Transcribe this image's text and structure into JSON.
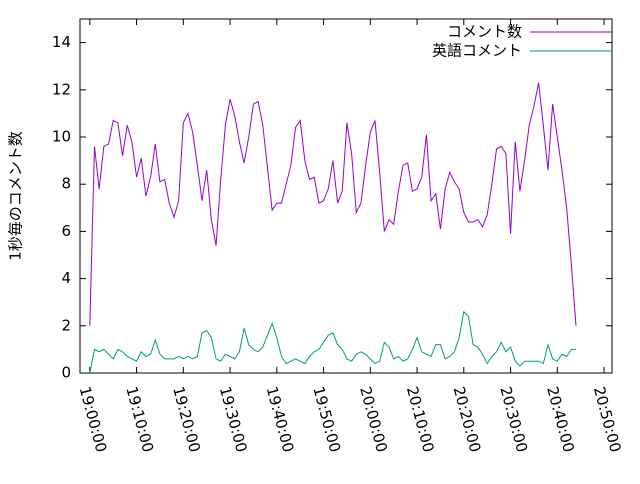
{
  "chart_data": {
    "type": "line",
    "y_label": "1秒毎のコメント数",
    "x": [
      0,
      1,
      2,
      3,
      4,
      5,
      6,
      7,
      8,
      9,
      10,
      11,
      12,
      13,
      14,
      15,
      16,
      17,
      18,
      19,
      20,
      21,
      22,
      23,
      24,
      25,
      26,
      27,
      28,
      29,
      30,
      31,
      32,
      33,
      34,
      35,
      36,
      37,
      38,
      39,
      40,
      41,
      42,
      43,
      44,
      45,
      46,
      47,
      48,
      49,
      50,
      51,
      52,
      53,
      54,
      55,
      56,
      57,
      58,
      59,
      60,
      61,
      62,
      63,
      64,
      65,
      66,
      67,
      68,
      69,
      70,
      71,
      72,
      73,
      74,
      75,
      76,
      77,
      78,
      79,
      80,
      81,
      82,
      83,
      84,
      85,
      86,
      87,
      88,
      89,
      90,
      91,
      92,
      93,
      94,
      95,
      96,
      97,
      98,
      99,
      100,
      101,
      102,
      103,
      104
    ],
    "series": [
      {
        "name": "コメント数",
        "color": "#9400d3",
        "values": [
          2.0,
          9.6,
          7.8,
          9.6,
          9.7,
          10.7,
          10.6,
          9.2,
          10.5,
          9.8,
          8.3,
          9.1,
          7.5,
          8.3,
          9.7,
          8.1,
          8.2,
          7.2,
          6.6,
          7.3,
          10.6,
          11.0,
          10.2,
          8.8,
          7.3,
          8.6,
          6.5,
          5.4,
          8.2,
          10.5,
          11.6,
          10.9,
          9.8,
          8.9,
          10.0,
          11.4,
          11.5,
          10.5,
          8.7,
          6.9,
          7.2,
          7.2,
          8.0,
          8.8,
          10.4,
          10.7,
          9.0,
          8.2,
          8.3,
          7.2,
          7.3,
          7.8,
          9.0,
          7.2,
          7.7,
          10.6,
          9.3,
          6.8,
          7.2,
          8.8,
          10.2,
          10.7,
          8.5,
          6.0,
          6.5,
          6.3,
          7.7,
          8.8,
          8.9,
          7.7,
          7.8,
          8.3,
          10.1,
          7.3,
          7.6,
          6.1,
          7.8,
          8.5,
          8.1,
          7.8,
          6.8,
          6.4,
          6.4,
          6.5,
          6.2,
          6.7,
          8.0,
          9.5,
          9.6,
          9.3,
          5.9,
          9.8,
          7.7,
          9.0,
          10.5,
          11.3,
          12.3,
          10.5,
          8.6,
          11.4,
          10.0,
          8.6,
          7.0,
          4.6,
          2.0
        ]
      },
      {
        "name": "英語コメント",
        "color": "#009e73",
        "values": [
          0,
          1.0,
          0.9,
          1.0,
          0.8,
          0.6,
          1.0,
          0.9,
          0.7,
          0.6,
          0.5,
          0.9,
          0.7,
          0.8,
          1.4,
          0.8,
          0.6,
          0.6,
          0.6,
          0.7,
          0.6,
          0.7,
          0.6,
          0.7,
          1.7,
          1.8,
          1.5,
          0.6,
          0.5,
          0.8,
          0.7,
          0.6,
          0.9,
          1.9,
          1.2,
          1.0,
          0.9,
          1.1,
          1.6,
          2.1,
          1.5,
          0.7,
          0.4,
          0.5,
          0.6,
          0.5,
          0.4,
          0.7,
          0.9,
          1.0,
          1.3,
          1.6,
          1.7,
          1.2,
          1.0,
          0.6,
          0.5,
          0.8,
          0.9,
          0.8,
          0.6,
          0.4,
          0.5,
          1.3,
          1.1,
          0.6,
          0.7,
          0.5,
          0.6,
          1.0,
          1.5,
          0.9,
          0.8,
          0.7,
          1.2,
          1.2,
          0.6,
          0.7,
          0.9,
          1.5,
          2.6,
          2.4,
          1.2,
          1.1,
          0.8,
          0.4,
          0.7,
          0.9,
          1.3,
          0.9,
          1.1,
          0.5,
          0.3,
          0.5,
          0.5,
          0.5,
          0.5,
          0.4,
          1.2,
          0.6,
          0.5,
          0.8,
          0.7,
          1.0,
          1.0
        ]
      }
    ],
    "xlim": [
      -2.1,
      111.7
    ],
    "xticks": [
      {
        "value": 0,
        "label": "19:00:00"
      },
      {
        "value": 10,
        "label": "19:10:00"
      },
      {
        "value": 20,
        "label": "19:20:00"
      },
      {
        "value": 30,
        "label": "19:30:00"
      },
      {
        "value": 40,
        "label": "19:40:00"
      },
      {
        "value": 50,
        "label": "19:50:00"
      },
      {
        "value": 60,
        "label": "20:00:00"
      },
      {
        "value": 70,
        "label": "20:10:00"
      },
      {
        "value": 80,
        "label": "20:20:00"
      },
      {
        "value": 90,
        "label": "20:30:00"
      },
      {
        "value": 100,
        "label": "20:40:00"
      },
      {
        "value": 110,
        "label": "20:50:00"
      }
    ],
    "ylim": [
      0,
      15
    ],
    "yticks": [
      0,
      2,
      4,
      6,
      8,
      10,
      12,
      14
    ],
    "legend": "top-right"
  }
}
